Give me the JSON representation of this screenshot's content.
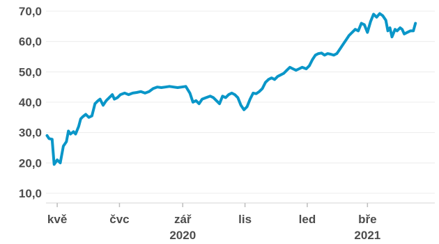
{
  "chart_data": {
    "type": "line",
    "title": "",
    "xlabel": "",
    "ylabel": "",
    "ylim": [
      10,
      70
    ],
    "y_ticks": [
      "10,0",
      "20,0",
      "30,0",
      "40,0",
      "50,0",
      "60,0",
      "70,0"
    ],
    "x_range": [
      "2020-04-20",
      "2021-05-06"
    ],
    "x_ticks": [
      {
        "date": "2020-05-01",
        "label": "kvě"
      },
      {
        "date": "2020-07-01",
        "label": "čvc"
      },
      {
        "date": "2020-09-01",
        "label": "zář"
      },
      {
        "date": "2020-11-01",
        "label": "lis"
      },
      {
        "date": "2021-01-01",
        "label": "led"
      },
      {
        "date": "2021-03-01",
        "label": "bře"
      }
    ],
    "year_labels": [
      {
        "date": "2020-09-01",
        "label": "2020"
      },
      {
        "date": "2021-03-01",
        "label": "2021"
      }
    ],
    "grid": "horizontal",
    "series": [
      {
        "color": "#0a96c8",
        "points": [
          [
            "2020-04-21",
            29.0
          ],
          [
            "2020-04-23",
            28.0
          ],
          [
            "2020-04-26",
            27.8
          ],
          [
            "2020-04-28",
            19.5
          ],
          [
            "2020-05-01",
            21.0
          ],
          [
            "2020-05-04",
            20.0
          ],
          [
            "2020-05-07",
            25.5
          ],
          [
            "2020-05-10",
            27.0
          ],
          [
            "2020-05-12",
            30.5
          ],
          [
            "2020-05-14",
            29.5
          ],
          [
            "2020-05-17",
            30.3
          ],
          [
            "2020-05-19",
            29.5
          ],
          [
            "2020-05-22",
            32.0
          ],
          [
            "2020-05-24",
            34.5
          ],
          [
            "2020-05-26",
            35.2
          ],
          [
            "2020-05-29",
            36.0
          ],
          [
            "2020-06-01",
            35.0
          ],
          [
            "2020-06-04",
            35.5
          ],
          [
            "2020-06-07",
            39.5
          ],
          [
            "2020-06-10",
            40.5
          ],
          [
            "2020-06-12",
            41.0
          ],
          [
            "2020-06-15",
            39.0
          ],
          [
            "2020-06-18",
            40.5
          ],
          [
            "2020-06-21",
            41.5
          ],
          [
            "2020-06-24",
            42.5
          ],
          [
            "2020-06-26",
            41.0
          ],
          [
            "2020-06-29",
            41.5
          ],
          [
            "2020-07-02",
            42.5
          ],
          [
            "2020-07-06",
            43.0
          ],
          [
            "2020-07-10",
            42.5
          ],
          [
            "2020-07-14",
            43.0
          ],
          [
            "2020-07-18",
            43.2
          ],
          [
            "2020-07-22",
            43.5
          ],
          [
            "2020-07-26",
            43.0
          ],
          [
            "2020-07-30",
            43.5
          ],
          [
            "2020-08-03",
            44.5
          ],
          [
            "2020-08-07",
            45.0
          ],
          [
            "2020-08-11",
            44.8
          ],
          [
            "2020-08-15",
            45.0
          ],
          [
            "2020-08-19",
            45.2
          ],
          [
            "2020-08-23",
            45.0
          ],
          [
            "2020-08-27",
            44.8
          ],
          [
            "2020-08-31",
            45.0
          ],
          [
            "2020-09-04",
            45.2
          ],
          [
            "2020-09-08",
            43.0
          ],
          [
            "2020-09-11",
            40.0
          ],
          [
            "2020-09-14",
            40.5
          ],
          [
            "2020-09-17",
            39.5
          ],
          [
            "2020-09-20",
            41.0
          ],
          [
            "2020-09-24",
            41.5
          ],
          [
            "2020-09-28",
            42.0
          ],
          [
            "2020-10-01",
            41.5
          ],
          [
            "2020-10-04",
            40.5
          ],
          [
            "2020-10-07",
            39.5
          ],
          [
            "2020-10-10",
            42.0
          ],
          [
            "2020-10-13",
            41.5
          ],
          [
            "2020-10-16",
            42.5
          ],
          [
            "2020-10-19",
            43.0
          ],
          [
            "2020-10-22",
            42.5
          ],
          [
            "2020-10-25",
            41.5
          ],
          [
            "2020-10-28",
            39.0
          ],
          [
            "2020-10-31",
            37.5
          ],
          [
            "2020-11-03",
            38.5
          ],
          [
            "2020-11-06",
            41.0
          ],
          [
            "2020-11-09",
            43.0
          ],
          [
            "2020-11-12",
            42.8
          ],
          [
            "2020-11-15",
            43.5
          ],
          [
            "2020-11-18",
            44.5
          ],
          [
            "2020-11-21",
            46.5
          ],
          [
            "2020-11-24",
            47.5
          ],
          [
            "2020-11-27",
            48.0
          ],
          [
            "2020-11-30",
            47.5
          ],
          [
            "2020-12-03",
            48.5
          ],
          [
            "2020-12-06",
            49.0
          ],
          [
            "2020-12-09",
            49.5
          ],
          [
            "2020-12-12",
            50.5
          ],
          [
            "2020-12-15",
            51.5
          ],
          [
            "2020-12-18",
            51.0
          ],
          [
            "2020-12-21",
            50.5
          ],
          [
            "2020-12-24",
            51.0
          ],
          [
            "2020-12-27",
            51.5
          ],
          [
            "2020-12-31",
            51.0
          ],
          [
            "2021-01-03",
            52.0
          ],
          [
            "2021-01-06",
            54.0
          ],
          [
            "2021-01-09",
            55.5
          ],
          [
            "2021-01-12",
            56.0
          ],
          [
            "2021-01-15",
            56.2
          ],
          [
            "2021-01-18",
            55.5
          ],
          [
            "2021-01-21",
            56.0
          ],
          [
            "2021-01-24",
            55.8
          ],
          [
            "2021-01-27",
            55.5
          ],
          [
            "2021-01-30",
            56.0
          ],
          [
            "2021-02-02",
            57.5
          ],
          [
            "2021-02-05",
            59.0
          ],
          [
            "2021-02-08",
            60.5
          ],
          [
            "2021-02-11",
            62.0
          ],
          [
            "2021-02-14",
            63.0
          ],
          [
            "2021-02-17",
            64.0
          ],
          [
            "2021-02-20",
            63.5
          ],
          [
            "2021-02-23",
            66.0
          ],
          [
            "2021-02-26",
            65.5
          ],
          [
            "2021-03-01",
            63.0
          ],
          [
            "2021-03-04",
            66.5
          ],
          [
            "2021-03-07",
            69.0
          ],
          [
            "2021-03-10",
            68.0
          ],
          [
            "2021-03-13",
            69.2
          ],
          [
            "2021-03-16",
            68.5
          ],
          [
            "2021-03-19",
            67.0
          ],
          [
            "2021-03-21",
            63.5
          ],
          [
            "2021-03-23",
            64.5
          ],
          [
            "2021-03-25",
            61.5
          ],
          [
            "2021-03-28",
            64.0
          ],
          [
            "2021-03-30",
            63.5
          ],
          [
            "2021-04-02",
            64.5
          ],
          [
            "2021-04-04",
            64.0
          ],
          [
            "2021-04-06",
            62.5
          ],
          [
            "2021-04-09",
            63.0
          ],
          [
            "2021-04-12",
            63.5
          ],
          [
            "2021-04-15",
            63.5
          ],
          [
            "2021-04-17",
            66.0
          ]
        ]
      }
    ]
  }
}
